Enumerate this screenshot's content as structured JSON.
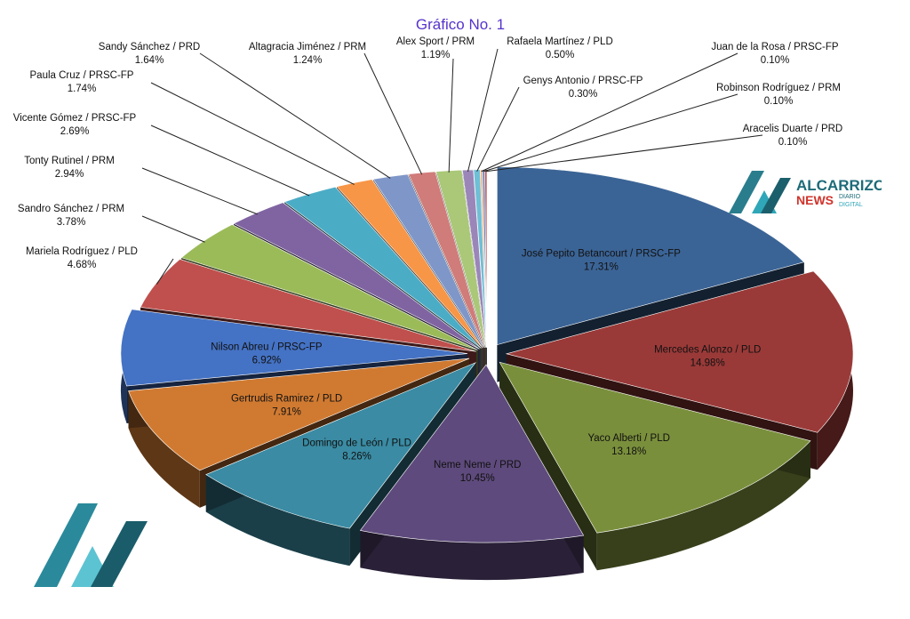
{
  "chart_data": {
    "type": "pie",
    "title": "Gráfico No. 1",
    "slices": [
      {
        "name": "José Pepito Betancourt / PRSC-FP",
        "pct": "17.31%",
        "value": 17.31,
        "color": "#3b6496"
      },
      {
        "name": "Mercedes Alonzo / PLD",
        "pct": "14.98%",
        "value": 14.98,
        "color": "#9a3a38"
      },
      {
        "name": "Yaco Alberti / PLD",
        "pct": "13.18%",
        "value": 13.18,
        "color": "#7a8f3c"
      },
      {
        "name": "Neme Neme / PRD",
        "pct": "10.45%",
        "value": 10.45,
        "color": "#5e4a7c"
      },
      {
        "name": "Domingo de León / PLD",
        "pct": "8.26%",
        "value": 8.26,
        "color": "#3a8ba3"
      },
      {
        "name": "Gertrudis Ramirez / PLD",
        "pct": "7.91%",
        "value": 7.91,
        "color": "#d07a31"
      },
      {
        "name": "Nilson Abreu / PRSC-FP",
        "pct": "6.92%",
        "value": 6.92,
        "color": "#4472c4"
      },
      {
        "name": "Mariela Rodríguez / PLD",
        "pct": "4.68%",
        "value": 4.68,
        "color": "#c0504d"
      },
      {
        "name": "Sandro Sánchez / PRM",
        "pct": "3.78%",
        "value": 3.78,
        "color": "#9bbb59"
      },
      {
        "name": "Tonty Rutinel / PRM",
        "pct": "2.94%",
        "value": 2.94,
        "color": "#8064a2"
      },
      {
        "name": "Vicente Gómez / PRSC-FP",
        "pct": "2.69%",
        "value": 2.69,
        "color": "#4bacc6"
      },
      {
        "name": "Paula Cruz / PRSC-FP",
        "pct": "1.74%",
        "value": 1.74,
        "color": "#f79646"
      },
      {
        "name": "Sandy Sánchez / PRD",
        "pct": "1.64%",
        "value": 1.64,
        "color": "#7f96c8"
      },
      {
        "name": "Altagracia Jiménez / PRM",
        "pct": "1.24%",
        "value": 1.24,
        "color": "#d07c7a"
      },
      {
        "name": "Alex Sport / PRM",
        "pct": "1.19%",
        "value": 1.19,
        "color": "#aac878"
      },
      {
        "name": "Rafaela Martínez / PLD",
        "pct": "0.50%",
        "value": 0.5,
        "color": "#9a86b8"
      },
      {
        "name": "Genys Antonio / PRSC-FP",
        "pct": "0.30%",
        "value": 0.3,
        "color": "#6fbfd6"
      },
      {
        "name": "Juan de la Rosa / PRSC-FP",
        "pct": "0.10%",
        "value": 0.1,
        "color": "#f9b07a"
      },
      {
        "name": "Robinson Rodríguez / PRM",
        "pct": "0.10%",
        "value": 0.1,
        "color": "#5a7fbf"
      },
      {
        "name": "Aracelis Duarte / PRD",
        "pct": "0.10%",
        "value": 0.1,
        "color": "#c05858"
      }
    ]
  },
  "logo": {
    "line1": "ALCARRIZOS",
    "line2": "NEWS",
    "line3a": "DIARIO",
    "line3b": "DIGITAL"
  }
}
